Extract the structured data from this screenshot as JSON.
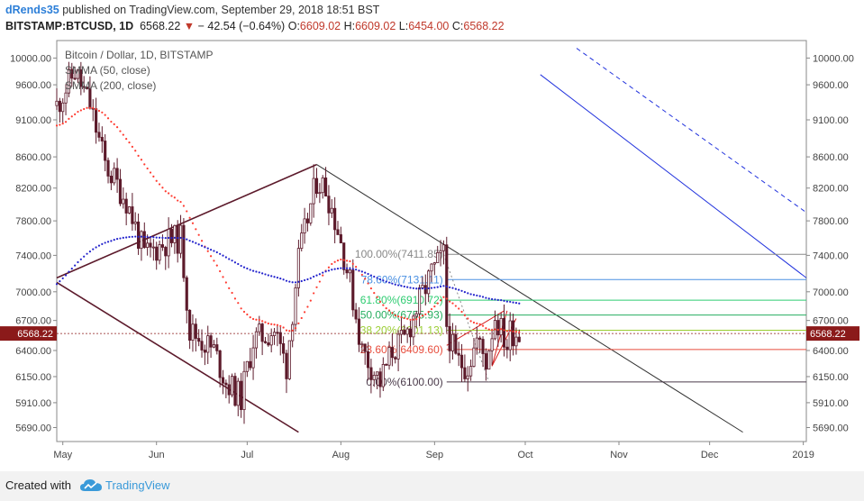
{
  "header": {
    "author": "dRends35",
    "published": "published on TradingView.com, September 29, 2018 18:51 BST",
    "symbol": "BITSTAMP:BTCUSD, 1D",
    "price": "6568.22",
    "change": "− 42.54 (−0.64%)",
    "open_label": "O:",
    "open": "6609.02",
    "high_label": "H:",
    "high": "6609.02",
    "low_label": "L:",
    "low": "6454.00",
    "close_label": "C:",
    "close": "6568.22"
  },
  "legend": {
    "title": "Bitcoin / Dollar, 1D, BITSTAMP",
    "ma50": "SMMA (50, close)",
    "ma200": "SMMA (200, close)"
  },
  "footer": {
    "made_with": "Created with",
    "brand": "TradingView"
  },
  "colors": {
    "candle_up": "#ffffff",
    "candle_down": "#5c1a2b",
    "ma50": "#ff3b30",
    "ma200": "#2222cc",
    "fib_100": "#888888",
    "fib_786": "#4a90e2",
    "fib_618": "#2ecc71",
    "fib_50": "#27ae60",
    "fib_382": "#9acd32",
    "fib_236": "#e74c3c",
    "fib_0": "#4a3a4a",
    "current_price": "#8b1a1a"
  },
  "chart_data": {
    "type": "candlestick",
    "title": "Bitcoin / Dollar, 1D, BITSTAMP",
    "x_tick_labels": [
      "May",
      "Jun",
      "Jul",
      "Aug",
      "Sep",
      "Oct",
      "Nov",
      "Dec",
      "2019"
    ],
    "y_tick_labels": [
      "10000.00",
      "9600.00",
      "9100.00",
      "8600.00",
      "8200.00",
      "7800.00",
      "7400.00",
      "7000.00",
      "6700.00",
      "6400.00",
      "6150.00",
      "5910.00",
      "5690.00"
    ],
    "y_ticks": [
      10000,
      9600,
      9100,
      8600,
      8200,
      7800,
      7400,
      7000,
      6700,
      6400,
      6150,
      5910,
      5690
    ],
    "y_scale": "log",
    "ylim": [
      5570,
      10200
    ],
    "x_range": [
      "2018-04-29",
      "2019-01-02"
    ],
    "current_price_label": "6568.22",
    "current_price": 6568.22,
    "fibonacci": [
      {
        "label": "100.00%(7411.85)",
        "level": 1.0,
        "value": 7411.85
      },
      {
        "label": "78.60%(7131.11)",
        "level": 0.786,
        "value": 7131.11
      },
      {
        "label": "61.80%(6910.72)",
        "level": 0.618,
        "value": 6910.72
      },
      {
        "label": "50.00%(6755.93)",
        "level": 0.5,
        "value": 6755.93
      },
      {
        "label": "38.20%(6601.13)",
        "level": 0.382,
        "value": 6601.13
      },
      {
        "label": "23.60%(6409.60)",
        "level": 0.236,
        "value": 6409.6
      },
      {
        "label": "0.00%(6100.00)",
        "level": 0.0,
        "value": 6100.0
      }
    ],
    "trendlines": [
      {
        "name": "upper-rising",
        "from": [
          "2018-04-29",
          7150
        ],
        "to": [
          "2018-07-24",
          8500
        ],
        "color": "#5c1a2b"
      },
      {
        "name": "lower-falling",
        "from": [
          "2018-04-29",
          7100
        ],
        "to": [
          "2018-07-18",
          5650
        ],
        "color": "#5c1a2b"
      },
      {
        "name": "black-descending",
        "from": [
          "2018-07-24",
          8500
        ],
        "to": [
          "2018-12-12",
          5650
        ],
        "color": "#333333"
      },
      {
        "name": "blue-solid",
        "from": [
          "2018-10-06",
          9750
        ],
        "to": [
          "2019-01-02",
          7150
        ],
        "color": "#2233dd"
      },
      {
        "name": "blue-dashed",
        "from": [
          "2018-10-18",
          10150
        ],
        "to": [
          "2019-01-02",
          7900
        ],
        "color": "#2233dd",
        "dash": true
      }
    ]
  }
}
